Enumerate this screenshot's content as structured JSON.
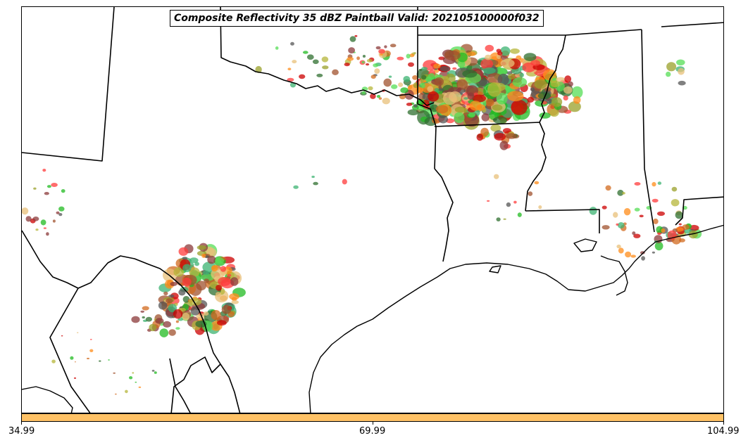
{
  "title": "Composite Reflectivity 35 dBZ Paintball Valid: 202105100000f032",
  "colorbar": {
    "color": "#ffc266",
    "ticks": [
      "34.99",
      "69.99",
      "104.99"
    ]
  },
  "member_colors": [
    "#e8c07a",
    "#ff8c1a",
    "#ff3b3b",
    "#cc0000",
    "#8b3a3a",
    "#a0522d",
    "#9aa02a",
    "#b5b53a",
    "#3cb371",
    "#22bb22",
    "#55dd55",
    "#2f6f2f",
    "#555555",
    "#d2691e"
  ],
  "map_layers": [
    "state-borders",
    "country-border",
    "coastline",
    "reflectivity-paintball"
  ]
}
